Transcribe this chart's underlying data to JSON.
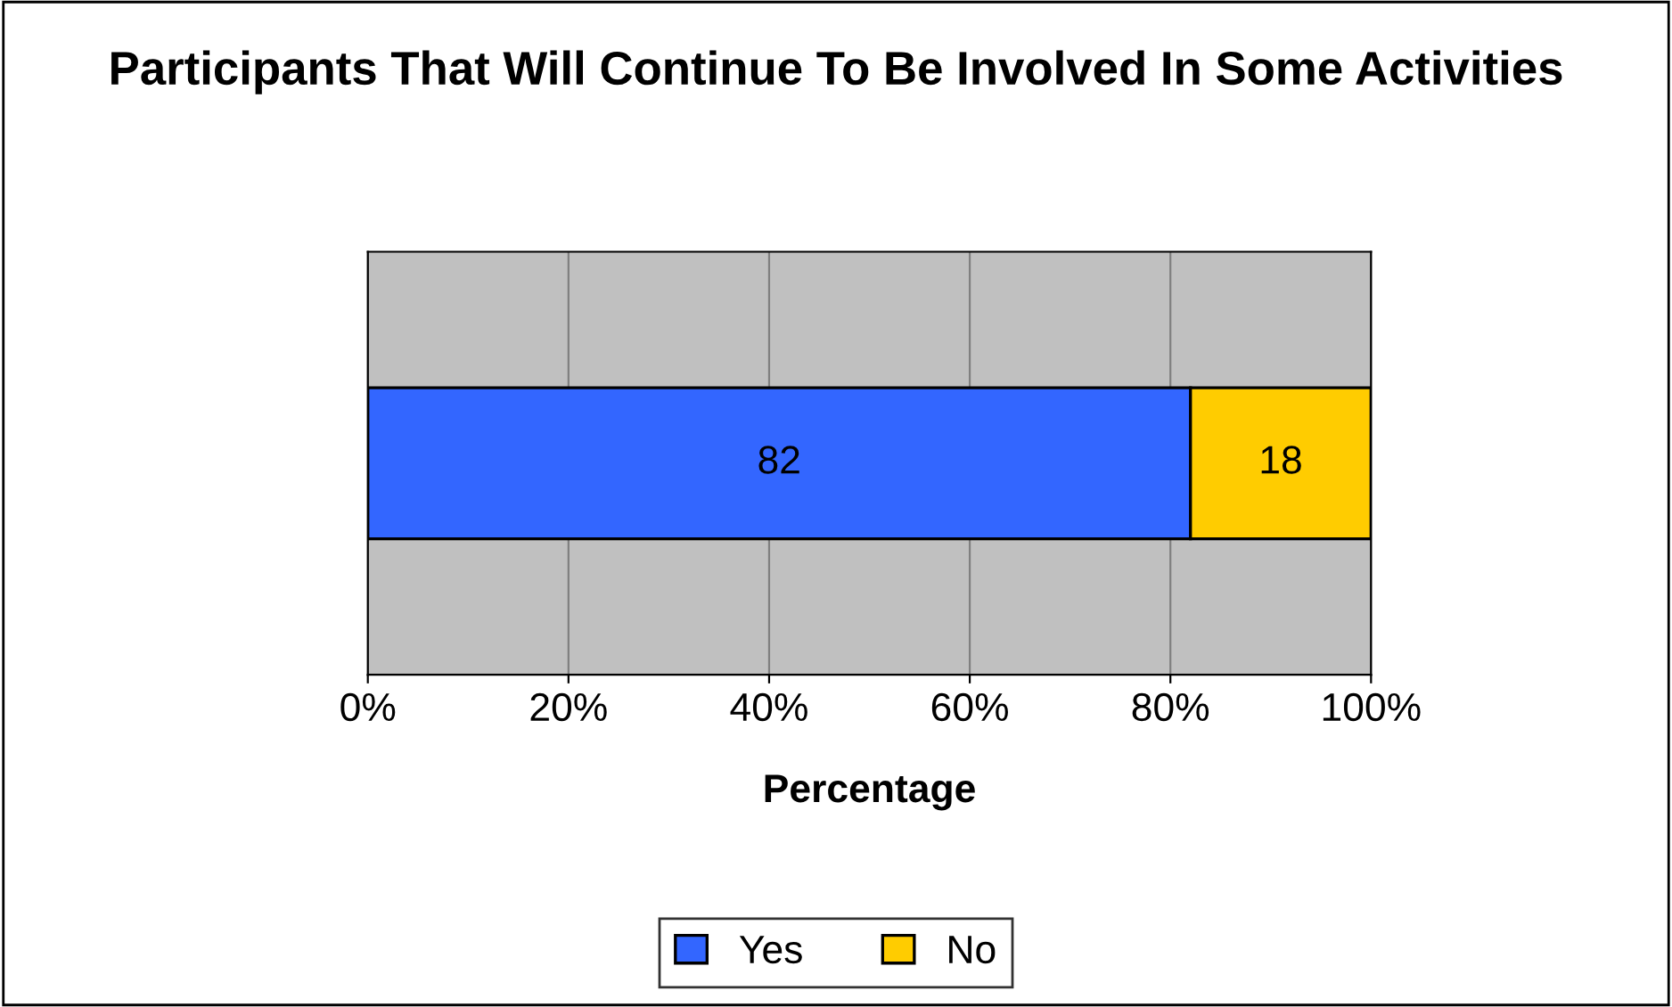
{
  "chart_data": {
    "type": "bar",
    "title": "Participants That Will Continue To Be Involved In Some Activities",
    "xlabel": "Percentage",
    "orientation": "horizontal",
    "stacked": true,
    "categories": [
      null
    ],
    "series": [
      {
        "name": "Yes",
        "color": "#3366ff",
        "values": [
          82
        ]
      },
      {
        "name": "No",
        "color": "#ffcc00",
        "values": [
          18
        ]
      }
    ],
    "xlim": [
      0,
      100
    ],
    "xticks": [
      {
        "value": 0,
        "label": "0%"
      },
      {
        "value": 20,
        "label": "20%"
      },
      {
        "value": 40,
        "label": "40%"
      },
      {
        "value": 60,
        "label": "60%"
      },
      {
        "value": 80,
        "label": "80%"
      },
      {
        "value": 100,
        "label": "100%"
      }
    ],
    "grid": "x",
    "legend": "bottom",
    "data_labels": true
  }
}
